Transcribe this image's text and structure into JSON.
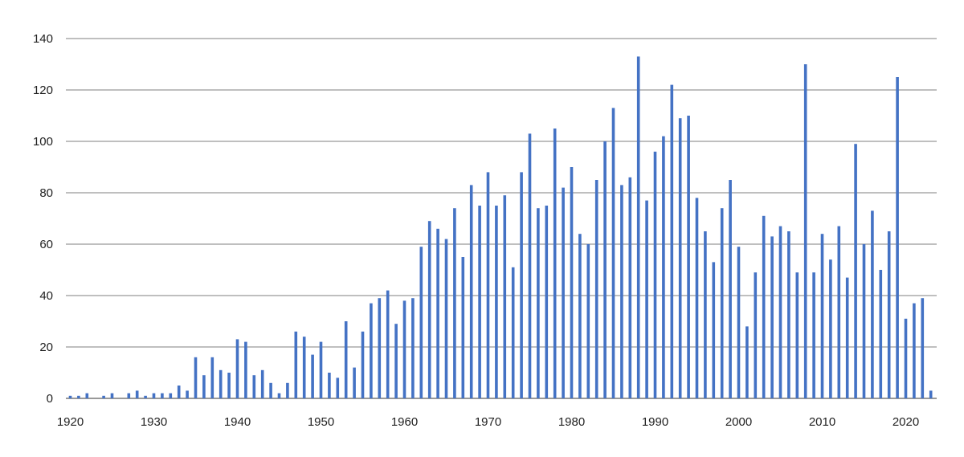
{
  "chart_data": {
    "type": "bar",
    "title": "",
    "xlabel": "",
    "ylabel": "",
    "ylim": [
      0,
      140
    ],
    "yticks": [
      "0",
      "20",
      "40",
      "60",
      "80",
      "100",
      "120",
      "140"
    ],
    "xticks": [
      "1920",
      "1930",
      "1940",
      "1950",
      "1960",
      "1970",
      "1980",
      "1990",
      "2000",
      "2010",
      "2020"
    ],
    "grid": true,
    "legend": "none",
    "bar_color": "#4472C4",
    "grid_color": "#555555",
    "x_start": 1920,
    "values": [
      1,
      1,
      2,
      0,
      1,
      2,
      0,
      2,
      3,
      1,
      2,
      2,
      2,
      5,
      3,
      16,
      9,
      16,
      11,
      10,
      23,
      22,
      9,
      11,
      6,
      2,
      6,
      26,
      24,
      17,
      22,
      10,
      8,
      30,
      12,
      26,
      37,
      39,
      42,
      29,
      38,
      39,
      59,
      69,
      66,
      62,
      74,
      55,
      83,
      75,
      88,
      75,
      79,
      51,
      88,
      103,
      74,
      75,
      105,
      82,
      90,
      64,
      60,
      85,
      100,
      113,
      83,
      86,
      133,
      77,
      96,
      102,
      122,
      109,
      110,
      78,
      65,
      53,
      74,
      85,
      59,
      28,
      49,
      71,
      63,
      67,
      65,
      49,
      130,
      49,
      64,
      54,
      67,
      47,
      99,
      60,
      73,
      50,
      65,
      125,
      31,
      37,
      39,
      3
    ]
  }
}
